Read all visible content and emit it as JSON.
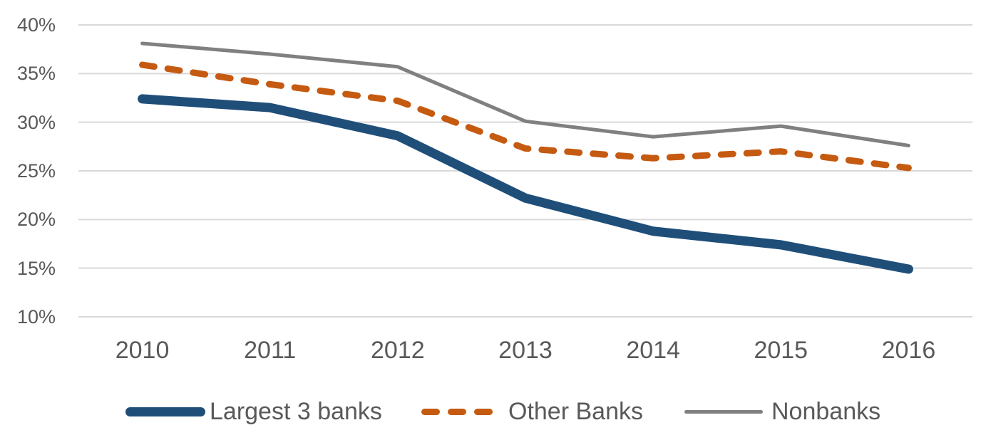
{
  "chart_data": {
    "type": "line",
    "title": "",
    "categories": [
      "2010",
      "2011",
      "2012",
      "2013",
      "2014",
      "2015",
      "2016"
    ],
    "series": [
      {
        "name": "Largest 3 banks",
        "color": "#1F4E79",
        "style": "solid",
        "stroke_width": 13,
        "values": [
          32.4,
          31.5,
          28.6,
          22.2,
          18.8,
          17.4,
          14.9
        ]
      },
      {
        "name": "Other Banks",
        "color": "#C55A11",
        "style": "dashed",
        "stroke_width": 9,
        "values": [
          35.9,
          33.9,
          32.2,
          27.3,
          26.3,
          27.0,
          25.3
        ]
      },
      {
        "name": "Nonbanks",
        "color": "#808080",
        "style": "solid",
        "stroke_width": 5,
        "values": [
          38.1,
          37.0,
          35.7,
          30.1,
          28.5,
          29.6,
          27.6
        ]
      }
    ],
    "y_axis": {
      "ticks": [
        "40%",
        "35%",
        "30%",
        "25%",
        "20%",
        "15%",
        "10%"
      ],
      "tick_values": [
        40,
        35,
        30,
        25,
        20,
        15,
        10
      ],
      "min": 10,
      "max": 40,
      "unit": "%"
    },
    "x_axis": {
      "label": ""
    },
    "grid": true,
    "legend_position": "bottom",
    "colors": {
      "grid": "#D9D9D9",
      "text": "#595959",
      "background": "#FFFFFF"
    }
  }
}
